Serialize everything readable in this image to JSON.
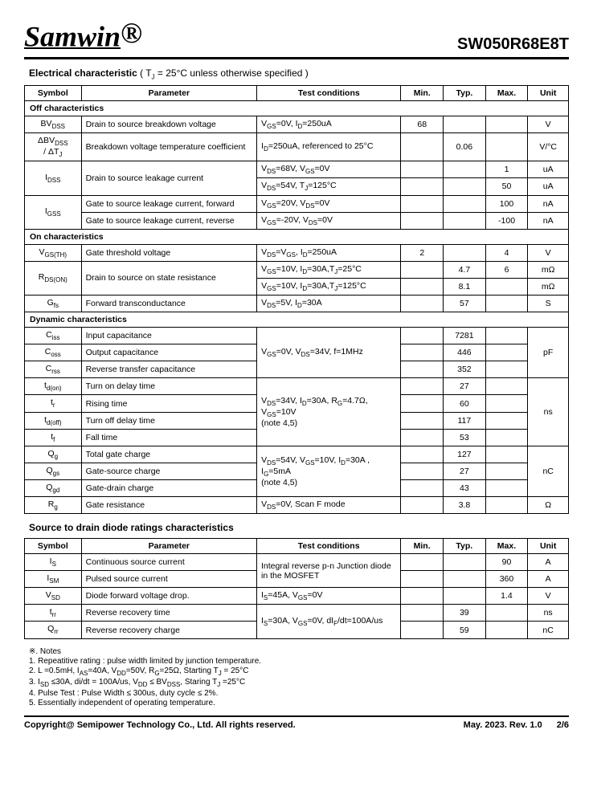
{
  "header": {
    "brand": "Samwin",
    "reg": "®",
    "part": "SW050R68E8T"
  },
  "section1": {
    "title": "Electrical characteristic",
    "cond": "( T",
    "cond_sub": "J",
    "cond_rest": " = 25°C unless otherwise specified )"
  },
  "table1": {
    "headers": [
      "Symbol",
      "Parameter",
      "Test conditions",
      "Min.",
      "Typ.",
      "Max.",
      "Unit"
    ],
    "group_off": "Off characteristics",
    "rows_off": [
      {
        "sym": "BV",
        "sub": "DSS",
        "param": "Drain to source breakdown voltage",
        "cond": "V<sub>GS</sub>=0V, I<sub>D</sub>=250uA",
        "min": "68",
        "typ": "",
        "max": "",
        "unit": "V"
      },
      {
        "sym": "ΔBV",
        "sub": "DSS",
        "sym2": "/ ΔT",
        "sub2": "J",
        "param": "Breakdown voltage temperature coefficient",
        "cond": "I<sub>D</sub>=250uA, referenced to 25°C",
        "min": "",
        "typ": "0.06",
        "max": "",
        "unit": "V/°C"
      }
    ],
    "idss_param": "Drain to source leakage current",
    "idss_cond1": "V<sub>DS</sub>=68V, V<sub>GS</sub>=0V",
    "idss_max1": "1",
    "idss_unit1": "uA",
    "idss_cond2": "V<sub>DS</sub>=54V, T<sub>J</sub>=125°C",
    "idss_max2": "50",
    "idss_unit2": "uA",
    "igss_param1": "Gate to source leakage current, forward",
    "igss_cond1": "V<sub>GS</sub>=20V, V<sub>DS</sub>=0V",
    "igss_max1": "100",
    "igss_unit1": "nA",
    "igss_param2": "Gate to source leakage current, reverse",
    "igss_cond2": "V<sub>GS</sub>=-20V, V<sub>DS</sub>=0V",
    "igss_max2": "-100",
    "igss_unit2": "nA",
    "group_on": "On characteristics",
    "vgsth_param": "Gate threshold voltage",
    "vgsth_cond": "V<sub>DS</sub>=V<sub>GS</sub>, I<sub>D</sub>=250uA",
    "vgsth_min": "2",
    "vgsth_max": "4",
    "vgsth_unit": "V",
    "rdson_param": "Drain to source on state resistance",
    "rdson_cond1": "V<sub>GS</sub>=10V, I<sub>D</sub>=30A,T<sub>J</sub>=25°C",
    "rdson_typ1": "4.7",
    "rdson_max1": "6",
    "rdson_unit1": "mΩ",
    "rdson_cond2": "V<sub>GS</sub>=10V, I<sub>D</sub>=30A,T<sub>J</sub>=125°C",
    "rdson_typ2": "8.1",
    "rdson_unit2": "mΩ",
    "gfs_param": "Forward transconductance",
    "gfs_cond": "V<sub>DS</sub>=5V, I<sub>D</sub>=30A",
    "gfs_typ": "57",
    "gfs_unit": "S",
    "group_dyn": "Dynamic characteristics",
    "ciss_param": "Input capacitance",
    "ciss_typ": "7281",
    "coss_param": "Output capacitance",
    "coss_typ": "446",
    "crss_param": "Reverse transfer capacitance",
    "crss_typ": "352",
    "cap_cond": "V<sub>GS</sub>=0V, V<sub>DS</sub>=34V, f=1MHz",
    "cap_unit": "pF",
    "tdon_param": "Turn on delay time",
    "tdon_typ": "27",
    "tr_param": "Rising time",
    "tr_typ": "60",
    "tdoff_param": "Turn off delay time",
    "tdoff_typ": "117",
    "tf_param": "Fall time",
    "tf_typ": "53",
    "sw_cond": "V<sub>DS</sub>=34V, I<sub>D</sub>=30A, R<sub>G</sub>=4.7Ω, V<sub>GS</sub>=10V<br>(note 4,5)",
    "sw_unit": "ns",
    "qg_param": "Total gate charge",
    "qg_typ": "127",
    "qgs_param": "Gate-source charge",
    "qgs_typ": "27",
    "qgd_param": "Gate-drain charge",
    "qgd_typ": "43",
    "q_cond": "V<sub>DS</sub>=54V, V<sub>GS</sub>=10V, I<sub>D</sub>=30A , I<sub>G</sub>=5mA<br>(note 4,5)",
    "q_unit": "nC",
    "rg_param": "Gate resistance",
    "rg_cond": "V<sub>DS</sub>=0V, Scan F mode",
    "rg_typ": "3.8",
    "rg_unit": "Ω"
  },
  "section2": {
    "title": "Source to drain diode ratings characteristics"
  },
  "table2": {
    "headers": [
      "Symbol",
      "Parameter",
      "Test conditions",
      "Min.",
      "Typ.",
      "Max.",
      "Unit"
    ],
    "is_param": "Continuous source current",
    "is_max": "90",
    "is_unit": "A",
    "ism_param": "Pulsed source current",
    "ism_max": "360",
    "ism_unit": "A",
    "diode_cond": "Integral reverse p-n Junction diode in the MOSFET",
    "vsd_param": "Diode forward voltage drop.",
    "vsd_cond": "I<sub>S</sub>=45A, V<sub>GS</sub>=0V",
    "vsd_max": "1.4",
    "vsd_unit": "V",
    "trr_param": "Reverse recovery time",
    "trr_typ": "39",
    "trr_unit": "ns",
    "qrr_param": "Reverse recovery charge",
    "qrr_typ": "59",
    "qrr_unit": "nC",
    "rr_cond": "I<sub>S</sub>=30A, V<sub>GS</sub>=0V, dI<sub>F</sub>/dt=100A/us"
  },
  "notes": {
    "title": "※. Notes",
    "n1": "1.       Repeatitive rating : pulse width limited by junction temperature.",
    "n2": "2.       L =0.5mH, I",
    "n2_rest": "=40A, V",
    "n2_rest2": "=50V, R",
    "n2_rest3": "=25Ω, Starting T",
    "n2_rest4": " = 25°C",
    "n3": "3.       I",
    "n3_rest": " ≤30A, di/dt = 100A/us, V",
    "n3_rest2": " ≤ BV",
    "n3_rest3": ", Staring T",
    "n3_rest4": " =25°C",
    "n4": "4.       Pulse Test : Pulse Width ≤ 300us, duty cycle ≤ 2%.",
    "n5": "5.       Essentially independent of operating temperature."
  },
  "footer": {
    "left": "Copyright@ Semipower Technology Co., Ltd. All rights reserved.",
    "date": "May. 2023. Rev. 1.0",
    "page": "2/6"
  }
}
